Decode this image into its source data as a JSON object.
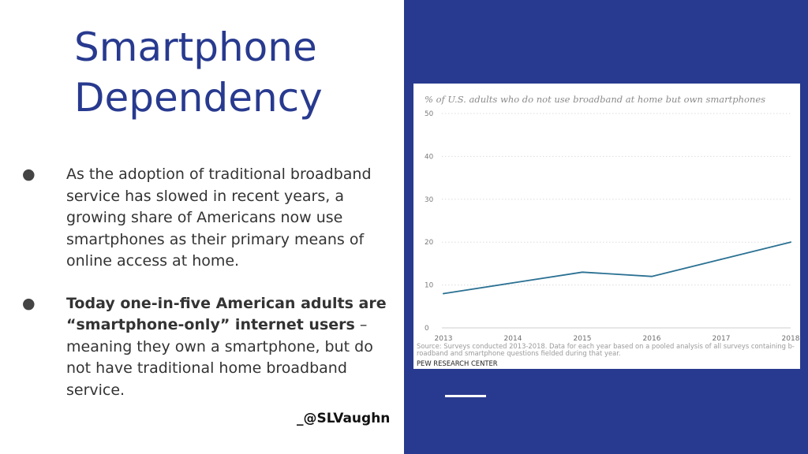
{
  "slide": {
    "title_line1": "Smartphone",
    "title_line2": "Dependency",
    "bullet_symbol": "●",
    "bullet1": "As the adoption of traditional broadband service has slowed in recent years, a growing share of Americans now use smartphones as their primary means of online access at home.",
    "bullet2_bold": "Today one-in-five American adults are “smartphone-only” internet users",
    "bullet2_rest": " – meaning they own a smartphone, but do not have traditional home broadband service.",
    "handle": "_@SLVaughn",
    "colors": {
      "brand": "#283a8f",
      "panel": "#283a8f",
      "line": "#2b7193"
    }
  },
  "chart_data": {
    "type": "line",
    "title": "% of U.S. adults who do not use broadband at home but own smartphones",
    "x": [
      "2013",
      "2014",
      "2015",
      "2016",
      "2017",
      "2018"
    ],
    "series": [
      {
        "values": [
          8,
          10.5,
          13,
          12,
          16,
          20
        ]
      }
    ],
    "ylim": [
      0,
      50
    ],
    "yticks": [
      0,
      10,
      20,
      30,
      40,
      50
    ],
    "grid": true,
    "source_line1": "Source: Surveys conducted 2013-2018. Data for each year based on a pooled analysis of all surveys containing b-",
    "source_line2": "roadband and smartphone questions fielded during that year.",
    "credit": "PEW RESEARCH CENTER"
  }
}
